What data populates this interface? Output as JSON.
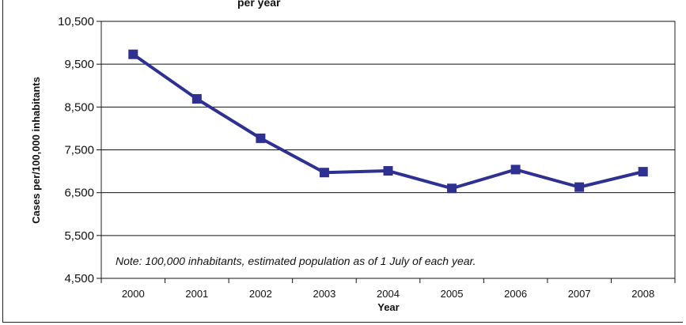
{
  "chart_data": {
    "type": "line",
    "title_fragment": "per year",
    "xlabel": "Year",
    "ylabel": "Cases per/100,000 inhabitants",
    "categories": [
      "2000",
      "2001",
      "2002",
      "2003",
      "2004",
      "2005",
      "2006",
      "2007",
      "2008"
    ],
    "series": [
      {
        "color": "#2e3192",
        "values": [
          9730,
          8690,
          7770,
          6970,
          7010,
          6600,
          7040,
          6630,
          6990
        ]
      }
    ],
    "ylim": [
      4500,
      10500
    ],
    "yticks": [
      4500,
      5500,
      6500,
      7500,
      8500,
      9500,
      10500
    ],
    "ytick_labels": [
      "4,500",
      "5,500",
      "6,500",
      "7,500",
      "8,500",
      "9,500",
      "10,500"
    ],
    "grid": "horizontal",
    "note": "Note: 100,000 inhabitants, estimated population as of 1 July of each year."
  }
}
